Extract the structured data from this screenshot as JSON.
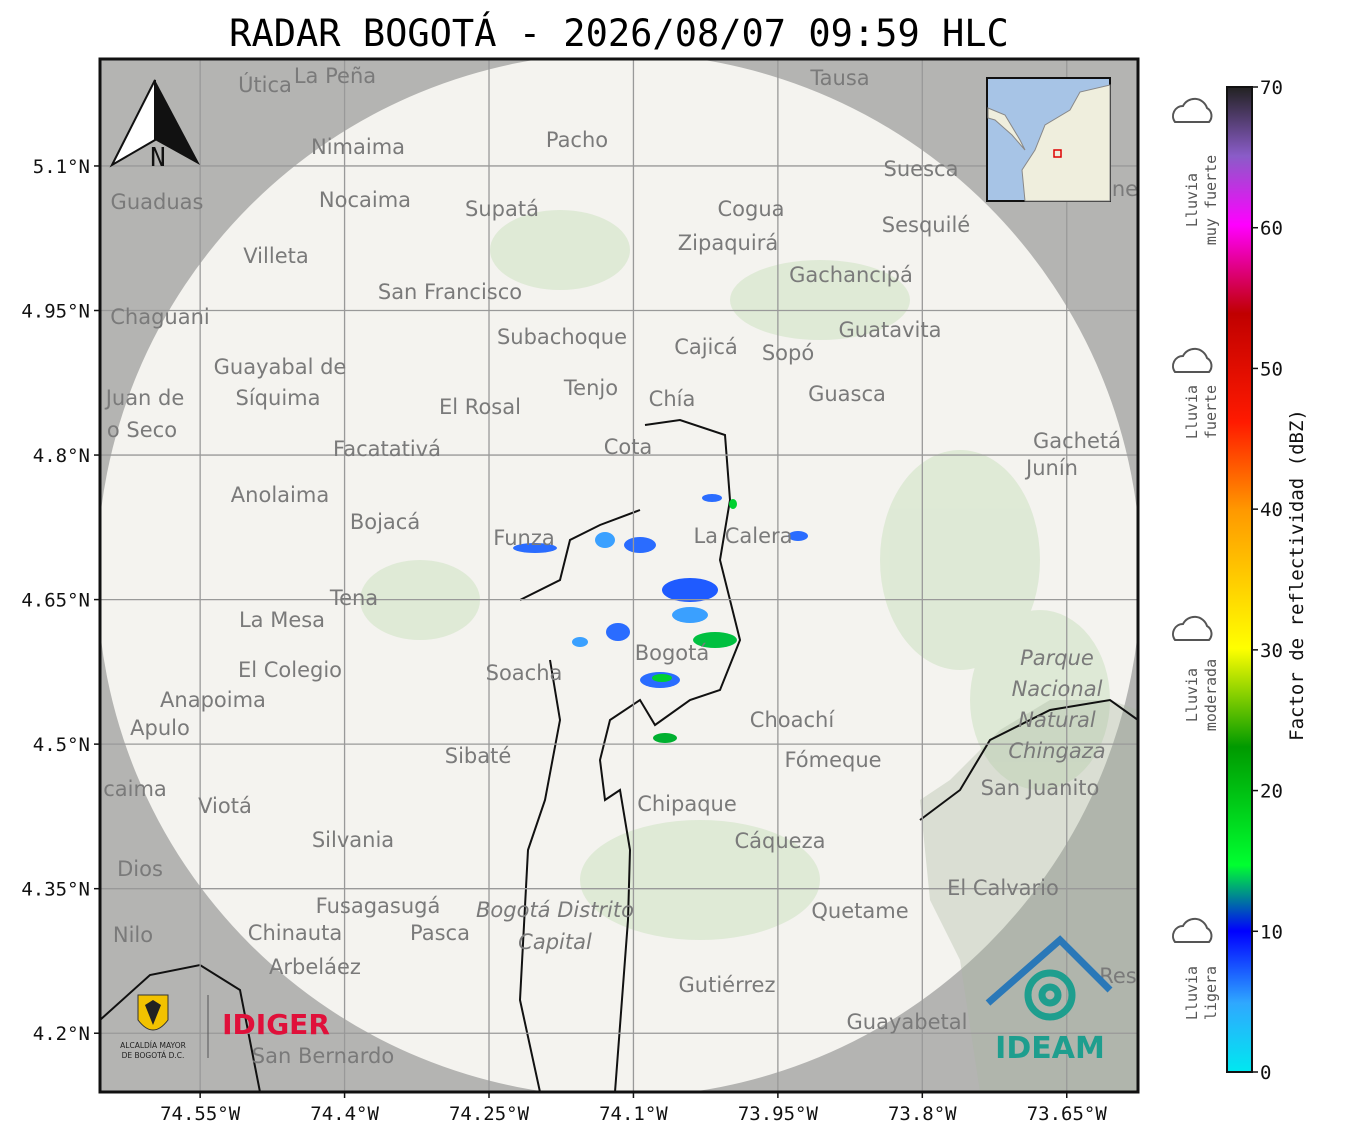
{
  "title": "RADAR BOGOTÁ - 2026/08/07 09:59 HLC",
  "map": {
    "xlim": [
      -74.654,
      -73.576
    ],
    "ylim": [
      4.139,
      5.211
    ],
    "xticks": [
      {
        "value": -74.55,
        "label": "74.55°W"
      },
      {
        "value": -74.4,
        "label": "74.4°W"
      },
      {
        "value": -74.25,
        "label": "74.25°W"
      },
      {
        "value": -74.1,
        "label": "74.1°W"
      },
      {
        "value": -73.95,
        "label": "73.95°W"
      },
      {
        "value": -73.8,
        "label": "73.8°W"
      },
      {
        "value": -73.65,
        "label": "73.65°W"
      }
    ],
    "yticks": [
      {
        "value": 5.1,
        "label": "5.1°N"
      },
      {
        "value": 4.95,
        "label": "4.95°N"
      },
      {
        "value": 4.8,
        "label": "4.8°N"
      },
      {
        "value": 4.65,
        "label": "4.65°N"
      },
      {
        "value": 4.5,
        "label": "4.5°N"
      },
      {
        "value": 4.35,
        "label": "4.35°N"
      },
      {
        "value": 4.2,
        "label": "4.2°N"
      }
    ],
    "north_label": "N",
    "places": [
      "Útica",
      "La Peña",
      "Tausa",
      "Pacho",
      "Nimaima",
      "Guaduas",
      "Nocaima",
      "Supatá",
      "Cogua",
      "Suesca",
      "Sesquilé",
      "Zipaquirá",
      "Villeta",
      "Gachancipá",
      "San Francisco",
      "Chaguani",
      "Guatavita",
      "Subachoque",
      "Cajicá",
      "Sopó",
      "Guayabal de",
      "Síquima",
      "Tenjo",
      "Chía",
      "Guasca",
      "Juan de",
      "o Seco",
      "El Rosal",
      "Facatativá",
      "Cota",
      "Gachetá",
      "Junín",
      "Anolaima",
      "Bojacá",
      "Funza",
      "La Calera",
      "Tena",
      "La Mesa",
      "Bogotá",
      "El Colegio",
      "Soacha",
      "Anapoima",
      "Apulo",
      "Choachí",
      "Sibaté",
      "Fómeque",
      "San Juanito",
      "caima",
      "Viotá",
      "Chipaque",
      "Silvania",
      "Cáqueza",
      "Dios",
      "El Calvario",
      "Fusagasugá",
      "Quetame",
      "Nilo",
      "Chinauta",
      "Pasca",
      "Arbeláez",
      "Gutiérrez",
      "Res",
      "Guayabetal",
      "San Bernardo",
      "ne"
    ],
    "park_label": [
      "Parque",
      "Nacional",
      "Natural",
      "Chingaza"
    ],
    "district_label": [
      "Bogotá Distrito",
      "Capital"
    ]
  },
  "colorbar": {
    "label": "Factor de reflectividad (dBZ)",
    "lim": [
      0,
      70
    ],
    "ticks": [
      0,
      10,
      20,
      30,
      40,
      50,
      60,
      70
    ]
  },
  "legend": [
    {
      "lines": [
        "Lluvia",
        "muy fuerte"
      ]
    },
    {
      "lines": [
        "Lluvia",
        "fuerte"
      ]
    },
    {
      "lines": [
        "Lluvia",
        "moderada"
      ]
    },
    {
      "lines": [
        "Lluvia",
        "ligera"
      ]
    }
  ],
  "logos": {
    "alcaldia": [
      "ALCALDÍA MAYOR",
      "DE BOGOTÁ D.C."
    ],
    "idiger": "IDIGER",
    "ideam": "IDEAM"
  }
}
